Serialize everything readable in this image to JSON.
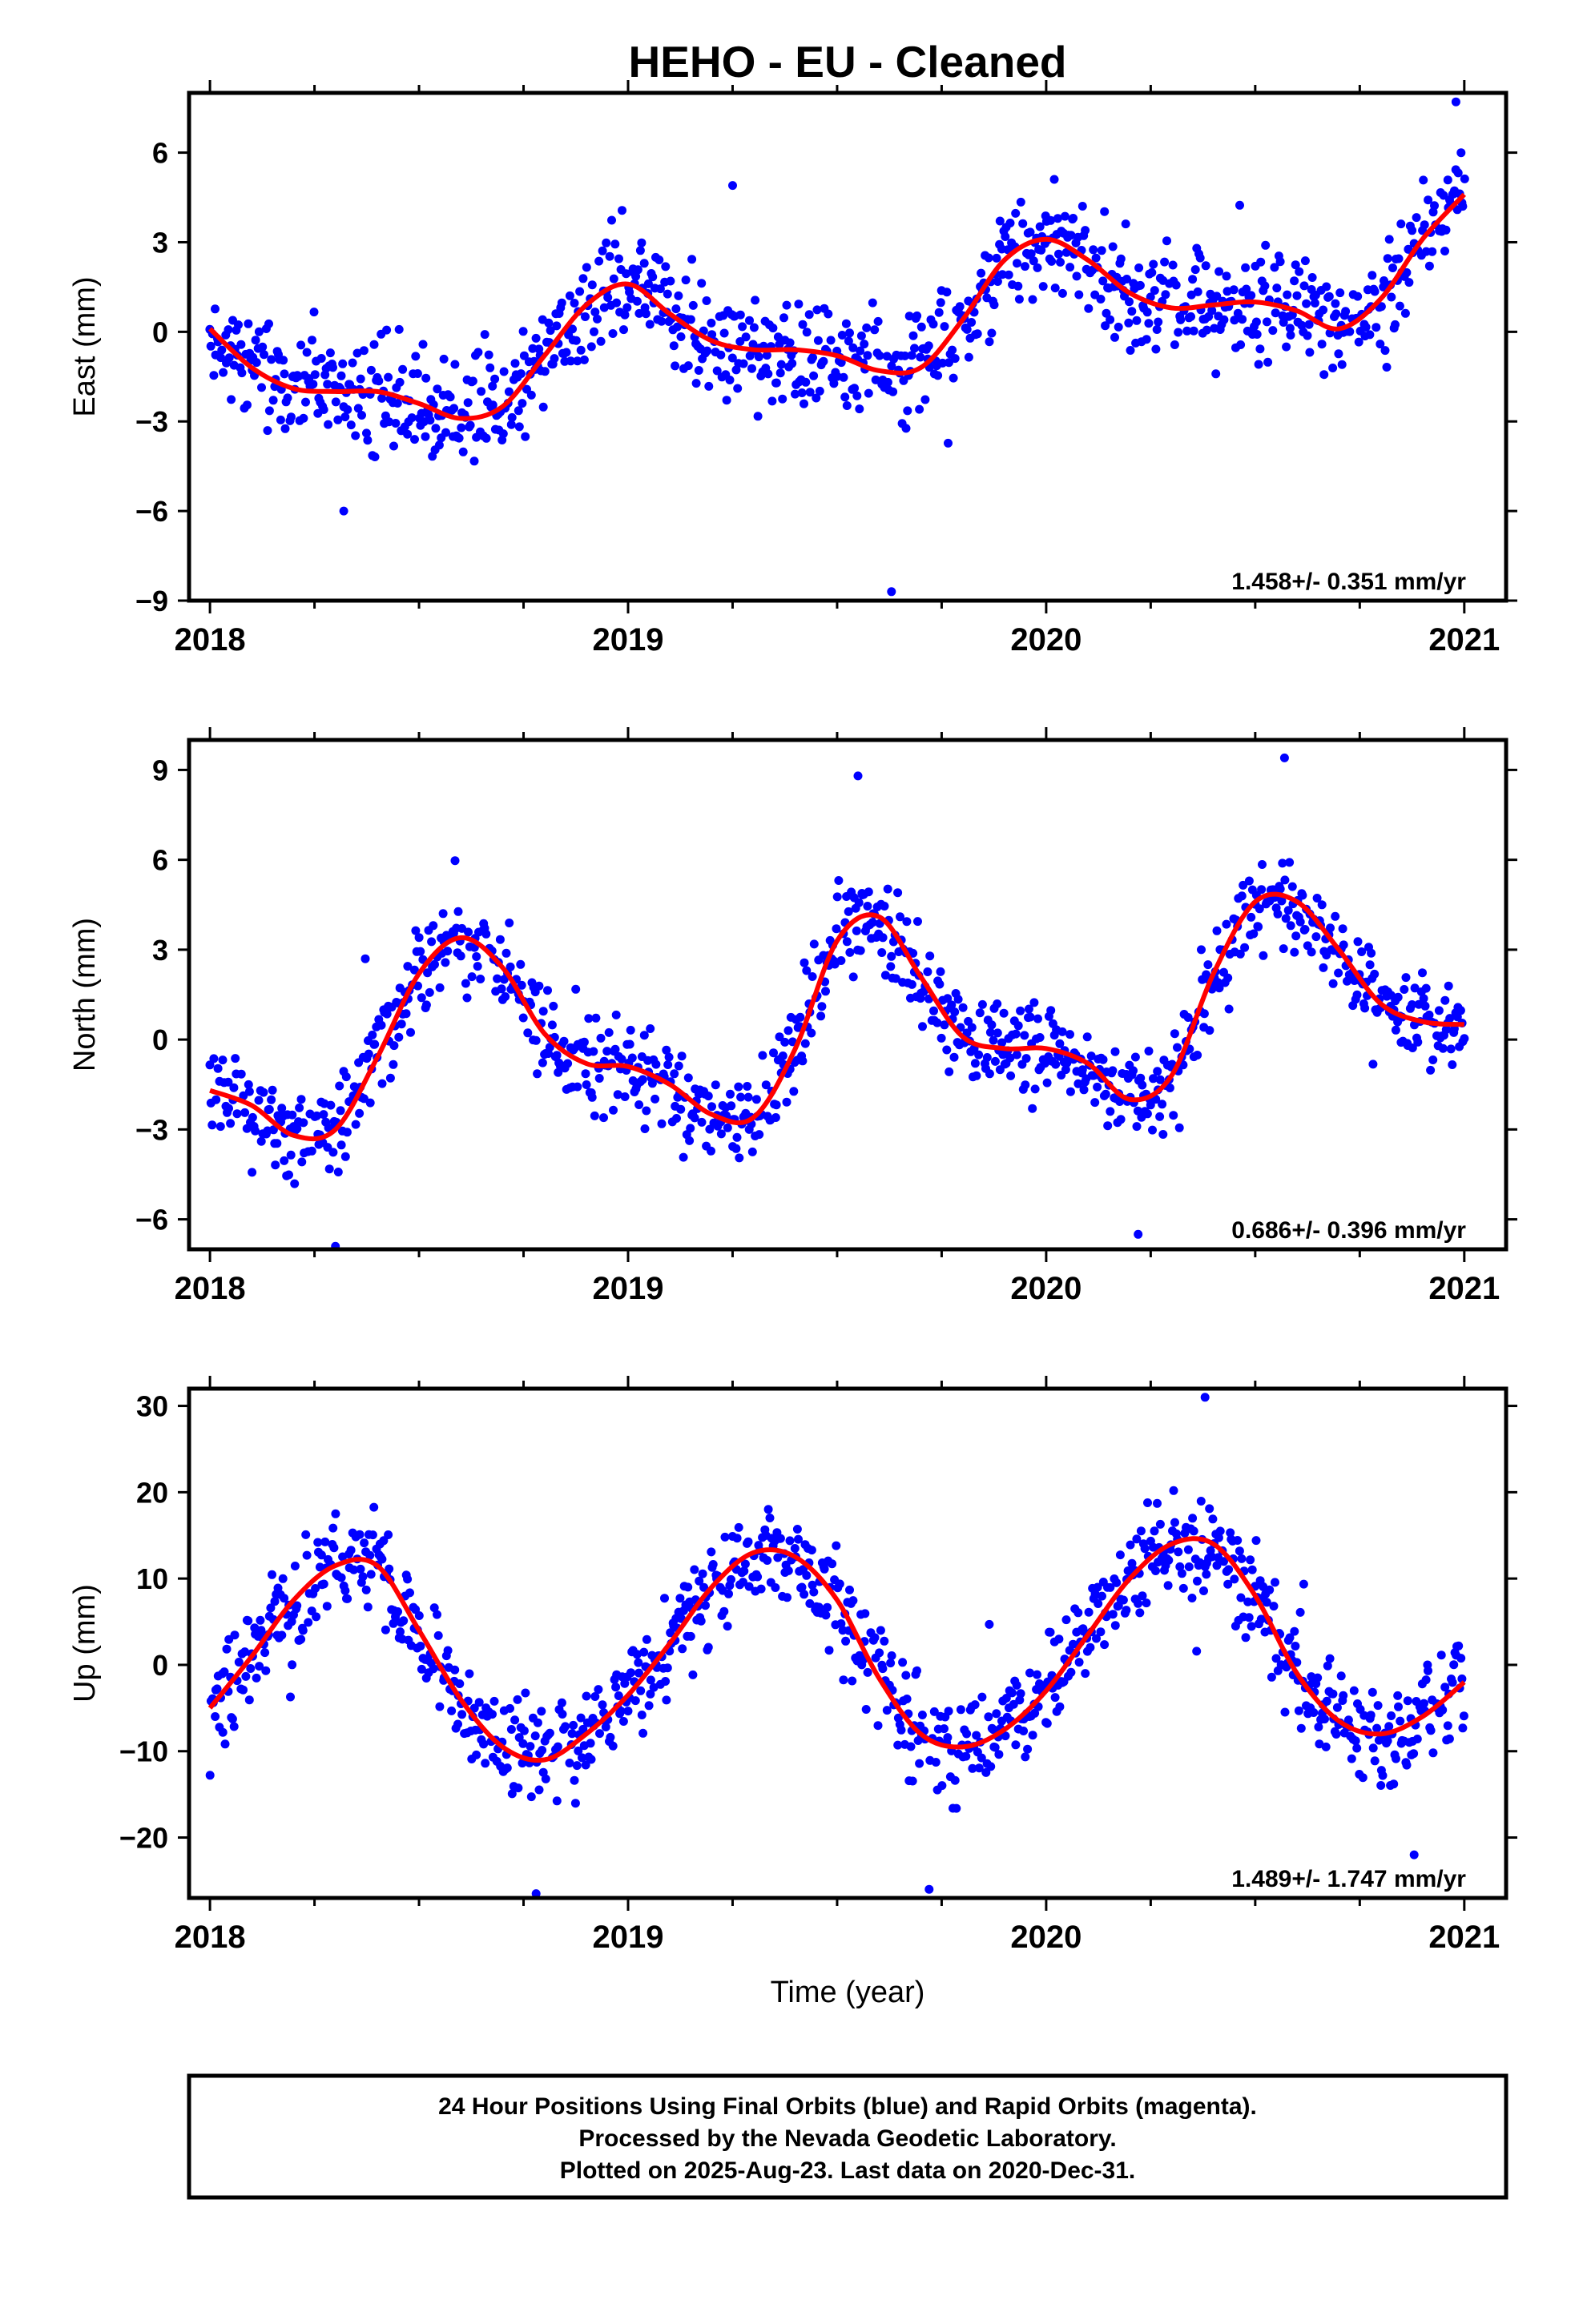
{
  "title": "HEHO  - EU - Cleaned",
  "caption": {
    "lines": [
      "24 Hour Positions Using Final Orbits (blue) and Rapid Orbits (magenta).",
      "Processed by the Nevada Geodetic Laboratory.",
      "Plotted on 2025-Aug-23. Last data on 2020-Dec-31."
    ]
  },
  "colors": {
    "points": "#0000ff",
    "fit": "#ff0000",
    "frame": "#000000"
  },
  "chart_data": [
    {
      "type": "scatter",
      "component": "East",
      "ylabel": "East (mm)",
      "xlabel": "",
      "xlim": [
        2017.95,
        2021.1
      ],
      "ylim": [
        -9,
        8
      ],
      "xticks": [
        2018,
        2019,
        2020,
        2021
      ],
      "yticks": [
        -9,
        -6,
        -3,
        0,
        3,
        6
      ],
      "rate_label": "1.458+/- 0.351 mm/yr",
      "fit_curve": {
        "x": [
          2018.0,
          2018.1,
          2018.2,
          2018.3,
          2018.4,
          2018.5,
          2018.6,
          2018.7,
          2018.8,
          2018.9,
          2019.0,
          2019.1,
          2019.2,
          2019.3,
          2019.4,
          2019.5,
          2019.6,
          2019.7,
          2019.8,
          2019.9,
          2020.0,
          2020.1,
          2020.2,
          2020.3,
          2020.4,
          2020.5,
          2020.6,
          2020.7,
          2020.8,
          2020.9,
          2021.0
        ],
        "y": [
          0.1,
          -1.2,
          -1.9,
          -2.0,
          -2.0,
          -2.4,
          -2.9,
          -2.5,
          -0.8,
          0.9,
          1.6,
          0.6,
          -0.3,
          -0.6,
          -0.6,
          -0.8,
          -1.3,
          -1.2,
          0.4,
          2.4,
          3.1,
          2.4,
          1.3,
          0.8,
          0.9,
          1.0,
          0.7,
          0.1,
          1.1,
          3.1,
          4.6
        ]
      },
      "scatter": {
        "count": 1050,
        "spread": 1.25,
        "seed": 11,
        "outliers": [
          [
            2019.63,
            -8.7
          ],
          [
            2018.32,
            -6.0
          ],
          [
            2020.98,
            7.7
          ],
          [
            2019.25,
            4.9
          ]
        ]
      }
    },
    {
      "type": "scatter",
      "component": "North",
      "ylabel": "North (mm)",
      "xlabel": "",
      "xlim": [
        2017.95,
        2021.1
      ],
      "ylim": [
        -7,
        10
      ],
      "xticks": [
        2018,
        2019,
        2020,
        2021
      ],
      "yticks": [
        -6,
        -3,
        0,
        3,
        6,
        9
      ],
      "rate_label": "0.686+/- 0.396 mm/yr",
      "fit_curve": {
        "x": [
          2018.0,
          2018.1,
          2018.2,
          2018.3,
          2018.4,
          2018.5,
          2018.6,
          2018.7,
          2018.8,
          2018.9,
          2019.0,
          2019.1,
          2019.2,
          2019.3,
          2019.4,
          2019.5,
          2019.6,
          2019.7,
          2019.8,
          2019.9,
          2020.0,
          2020.1,
          2020.2,
          2020.3,
          2020.4,
          2020.5,
          2020.6,
          2020.7,
          2020.8,
          2020.9,
          2021.0
        ],
        "y": [
          -1.7,
          -2.2,
          -3.2,
          -3.0,
          -0.6,
          2.2,
          3.4,
          2.4,
          0.2,
          -0.8,
          -0.9,
          -1.5,
          -2.5,
          -2.6,
          -0.3,
          3.3,
          4.1,
          2.1,
          0.1,
          -0.3,
          -0.3,
          -0.8,
          -2.0,
          -1.2,
          2.2,
          4.6,
          4.6,
          3.0,
          1.2,
          0.6,
          0.5
        ]
      },
      "scatter": {
        "count": 1050,
        "spread": 1.15,
        "seed": 23,
        "outliers": [
          [
            2019.55,
            8.8
          ],
          [
            2020.57,
            9.4
          ],
          [
            2018.3,
            -6.9
          ],
          [
            2020.22,
            -6.5
          ]
        ]
      }
    },
    {
      "type": "scatter",
      "component": "Up",
      "ylabel": "Up (mm)",
      "xlabel": "Time (year)",
      "xlim": [
        2017.95,
        2021.1
      ],
      "ylim": [
        -27,
        32
      ],
      "xticks": [
        2018,
        2019,
        2020,
        2021
      ],
      "yticks": [
        -20,
        -10,
        0,
        10,
        20,
        30
      ],
      "rate_label": "1.489+/- 1.747 mm/yr",
      "fit_curve": {
        "x": [
          2018.0,
          2018.1,
          2018.2,
          2018.3,
          2018.4,
          2018.5,
          2018.6,
          2018.7,
          2018.8,
          2018.9,
          2019.0,
          2019.1,
          2019.2,
          2019.3,
          2019.4,
          2019.5,
          2019.6,
          2019.7,
          2019.8,
          2019.9,
          2020.0,
          2020.1,
          2020.2,
          2020.3,
          2020.4,
          2020.5,
          2020.6,
          2020.7,
          2020.8,
          2020.9,
          2021.0
        ],
        "y": [
          -5.0,
          1.0,
          7.5,
          11.5,
          11.5,
          4.0,
          -4.0,
          -9.5,
          -11.0,
          -8.0,
          -3.5,
          2.5,
          9.0,
          13.0,
          12.5,
          7.5,
          -1.5,
          -8.0,
          -9.5,
          -7.5,
          -3.0,
          3.5,
          10.0,
          14.0,
          14.0,
          8.0,
          -1.0,
          -6.5,
          -8.0,
          -6.0,
          -2.0
        ]
      },
      "scatter": {
        "count": 1050,
        "spread": 4.4,
        "seed": 37,
        "outliers": [
          [
            2018.78,
            -26.5
          ],
          [
            2020.38,
            31.0
          ],
          [
            2019.72,
            -26.0
          ],
          [
            2020.88,
            -22.0
          ]
        ]
      }
    }
  ]
}
